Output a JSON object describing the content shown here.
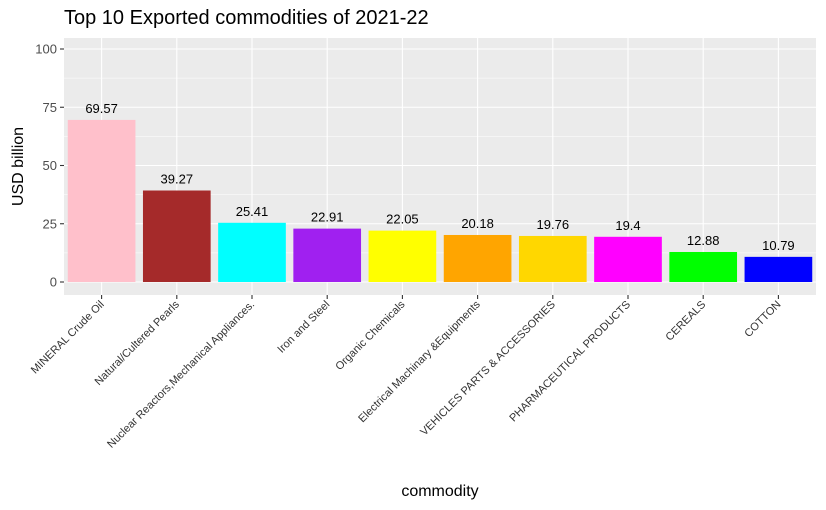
{
  "chart_data": {
    "type": "bar",
    "title": "Top 10 Exported commodities of 2021-22",
    "xlabel": "commodity",
    "ylabel": "USD billion",
    "ylim": [
      0,
      100
    ],
    "yticks": [
      0,
      25,
      50,
      75,
      100
    ],
    "grid": true,
    "legend": "none",
    "categories": [
      "MINERAL Crude Oil",
      "Natural/Cultered Pearls",
      "Nuclear Reactors,Mechanical Appliances.",
      "Iron and Steel",
      "Organic Chemicals",
      "Electrical Machinary &Equipments",
      "VEHICLES PARTS & ACCESSORIES",
      "PHARMACEUTICAL PRODUCTS",
      "CEREALS",
      "COTTON"
    ],
    "values": [
      69.57,
      39.27,
      25.41,
      22.91,
      22.05,
      20.18,
      19.76,
      19.4,
      12.88,
      10.79
    ],
    "value_labels": [
      "69.57",
      "39.27",
      "25.41",
      "22.91",
      "22.05",
      "20.18",
      "19.76",
      "19.4",
      "12.88",
      "10.79"
    ],
    "colors": [
      "#FFC0CB",
      "#A52A2A",
      "#00FFFF",
      "#A020F0",
      "#FFFF00",
      "#FFA500",
      "#FFD700",
      "#FF00FF",
      "#00FF00",
      "#0000FF"
    ],
    "panel_background": "#EBEBEB",
    "grid_color": "#FFFFFF"
  }
}
